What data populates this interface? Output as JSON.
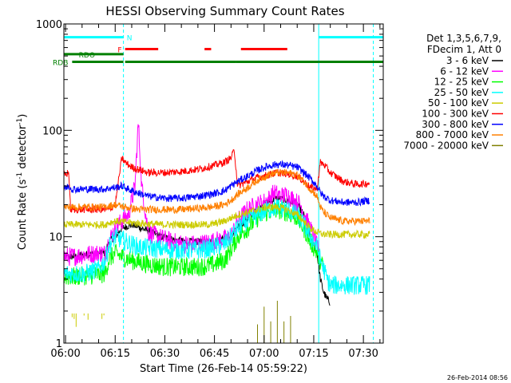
{
  "chart_data": {
    "type": "line",
    "title": "HESSI Observing Summary Count Rates",
    "xlabel": "Start Time (26-Feb-14 05:59:22)",
    "ylabel": "Count Rate (s⁻¹ detector⁻¹)",
    "ylabel_main": "Count Rate (s",
    "ylabel_sup1": "-1",
    "ylabel_mid": " detector",
    "ylabel_sup2": "-1",
    "ylabel_end": ")",
    "yscale": "log",
    "ylim": [
      1,
      1000
    ],
    "y_ticks": [
      1,
      10,
      100,
      1000
    ],
    "y_tick_labels": [
      "1",
      "10",
      "100",
      "1000"
    ],
    "xlim_minutes": [
      -0.5,
      96
    ],
    "x_ticks_minutes": [
      0,
      15,
      30,
      45,
      60,
      75,
      90
    ],
    "x_tick_labels": [
      "06:00",
      "06:15",
      "06:30",
      "06:45",
      "07:00",
      "07:15",
      "07:30"
    ],
    "grid": false,
    "legend_position": "right",
    "legend_header": [
      "Det 1,3,5,6,7,9,",
      "FDecim 1, Att 0"
    ],
    "timestamp": "26-Feb-2014 08:56",
    "series": [
      {
        "name": "3 - 6 keV",
        "color": "#000000",
        "points": [
          [
            -0.5,
            6.5
          ],
          [
            2,
            6.5
          ],
          [
            6,
            6.8
          ],
          [
            10,
            7
          ],
          [
            12,
            7
          ],
          [
            13,
            9
          ],
          [
            15,
            10
          ],
          [
            17,
            12
          ],
          [
            20,
            13
          ],
          [
            23,
            12
          ],
          [
            26,
            11
          ],
          [
            29,
            10
          ],
          [
            32,
            9.5
          ],
          [
            36,
            9
          ],
          [
            40,
            9
          ],
          [
            44,
            9
          ],
          [
            48,
            9.5
          ],
          [
            50,
            10
          ],
          [
            52,
            12
          ],
          [
            55,
            15
          ],
          [
            58,
            18
          ],
          [
            61,
            21
          ],
          [
            64,
            23
          ],
          [
            67,
            22
          ],
          [
            70,
            20
          ],
          [
            72,
            16
          ],
          [
            74,
            10
          ],
          [
            76,
            7
          ],
          [
            77,
            4
          ],
          [
            78,
            3
          ],
          [
            79,
            2.6
          ],
          [
            80,
            2.4
          ]
        ]
      },
      {
        "name": "6 - 12 keV",
        "color": "#ff00ff",
        "points": [
          [
            -0.5,
            6.5
          ],
          [
            2,
            6.5
          ],
          [
            6,
            6.8
          ],
          [
            10,
            7
          ],
          [
            12,
            7
          ],
          [
            13,
            9
          ],
          [
            15,
            12
          ],
          [
            17,
            14
          ],
          [
            19,
            16
          ],
          [
            21,
            30
          ],
          [
            22,
            120
          ],
          [
            23,
            30
          ],
          [
            25,
            11
          ],
          [
            28,
            10
          ],
          [
            32,
            9
          ],
          [
            36,
            8.5
          ],
          [
            40,
            8.5
          ],
          [
            44,
            9
          ],
          [
            48,
            9.5
          ],
          [
            50,
            10
          ],
          [
            52,
            14
          ],
          [
            55,
            18
          ],
          [
            58,
            20
          ],
          [
            61,
            22
          ],
          [
            63,
            26
          ],
          [
            65,
            24
          ],
          [
            67,
            25
          ],
          [
            69,
            22
          ],
          [
            71,
            20
          ],
          [
            73,
            14
          ],
          [
            75,
            10
          ],
          [
            76,
            8
          ],
          [
            77,
            6
          ]
        ]
      },
      {
        "name": "12 - 25 keV",
        "color": "#00ff00",
        "points": [
          [
            -0.5,
            4.2
          ],
          [
            2,
            4.2
          ],
          [
            6,
            4.3
          ],
          [
            10,
            4.4
          ],
          [
            12,
            4.5
          ],
          [
            13,
            6
          ],
          [
            15,
            7
          ],
          [
            17,
            6.5
          ],
          [
            20,
            6
          ],
          [
            25,
            5.5
          ],
          [
            30,
            5.2
          ],
          [
            35,
            5.2
          ],
          [
            40,
            5.2
          ],
          [
            44,
            5.4
          ],
          [
            48,
            6
          ],
          [
            50,
            7.5
          ],
          [
            52,
            10
          ],
          [
            55,
            12
          ],
          [
            58,
            15
          ],
          [
            61,
            17
          ],
          [
            64,
            18
          ],
          [
            67,
            17
          ],
          [
            70,
            15
          ],
          [
            72,
            12
          ],
          [
            74,
            9
          ],
          [
            76,
            7
          ],
          [
            78,
            5
          ]
        ]
      },
      {
        "name": "25 - 50 keV",
        "color": "#00ffff",
        "points": [
          [
            -0.5,
            4.5
          ],
          [
            2,
            4.5
          ],
          [
            6,
            4.5
          ],
          [
            10,
            5
          ],
          [
            12,
            6
          ],
          [
            13,
            8
          ],
          [
            15,
            10
          ],
          [
            18,
            9
          ],
          [
            22,
            8
          ],
          [
            26,
            7.8
          ],
          [
            30,
            7.6
          ],
          [
            35,
            7.5
          ],
          [
            40,
            7.5
          ],
          [
            44,
            7.8
          ],
          [
            48,
            8.5
          ],
          [
            50,
            10
          ],
          [
            52,
            12
          ],
          [
            55,
            14
          ],
          [
            58,
            16
          ],
          [
            61,
            18
          ],
          [
            64,
            19
          ],
          [
            67,
            18
          ],
          [
            70,
            16
          ],
          [
            72,
            13
          ],
          [
            74,
            10
          ],
          [
            76,
            8
          ],
          [
            77,
            6
          ],
          [
            78,
            5
          ],
          [
            79,
            4
          ],
          [
            80,
            3.5
          ],
          [
            84,
            3.5
          ],
          [
            88,
            3.5
          ],
          [
            92,
            3.5
          ]
        ]
      },
      {
        "name": "50 - 100 keV",
        "color": "#cccc00",
        "points": [
          [
            -0.5,
            13
          ],
          [
            2,
            13
          ],
          [
            6,
            13
          ],
          [
            10,
            13
          ],
          [
            12,
            13
          ],
          [
            13,
            13.5
          ],
          [
            15,
            14
          ],
          [
            20,
            13.5
          ],
          [
            25,
            13.2
          ],
          [
            30,
            13
          ],
          [
            35,
            13
          ],
          [
            40,
            13
          ],
          [
            44,
            13
          ],
          [
            48,
            14
          ],
          [
            50,
            15
          ],
          [
            52,
            16
          ],
          [
            55,
            17
          ],
          [
            58,
            18
          ],
          [
            61,
            19
          ],
          [
            64,
            19
          ],
          [
            67,
            18
          ],
          [
            70,
            16
          ],
          [
            72,
            14
          ],
          [
            74,
            12
          ],
          [
            76,
            11
          ],
          [
            78,
            10.5
          ],
          [
            80,
            10.5
          ],
          [
            84,
            10.5
          ],
          [
            88,
            10.5
          ],
          [
            92,
            10.5
          ]
        ]
      },
      {
        "name": "100 - 300 keV",
        "color": "#ff0000",
        "points": [
          [
            -0.5,
            38
          ],
          [
            1,
            40
          ],
          [
            1.5,
            18
          ],
          [
            6,
            18
          ],
          [
            10,
            18
          ],
          [
            12,
            18
          ],
          [
            13,
            18
          ],
          [
            15,
            20
          ],
          [
            17,
            55
          ],
          [
            18,
            50
          ],
          [
            20,
            45
          ],
          [
            25,
            40
          ],
          [
            30,
            40
          ],
          [
            35,
            41
          ],
          [
            40,
            43
          ],
          [
            44,
            46
          ],
          [
            48,
            50
          ],
          [
            50,
            55
          ],
          [
            51,
            65
          ],
          [
            52,
            30
          ],
          [
            55,
            33
          ],
          [
            58,
            36
          ],
          [
            61,
            38
          ],
          [
            64,
            40
          ],
          [
            67,
            39
          ],
          [
            70,
            37
          ],
          [
            72,
            33
          ],
          [
            74,
            29
          ],
          [
            76,
            28
          ],
          [
            77,
            50
          ],
          [
            78,
            48
          ],
          [
            80,
            40
          ],
          [
            84,
            33
          ],
          [
            88,
            31
          ],
          [
            92,
            32
          ]
        ]
      },
      {
        "name": "300 - 800 keV",
        "color": "#0000ff",
        "points": [
          [
            -0.5,
            28
          ],
          [
            1,
            30
          ],
          [
            2,
            28
          ],
          [
            6,
            28
          ],
          [
            10,
            28
          ],
          [
            12,
            28
          ],
          [
            13,
            28.5
          ],
          [
            15,
            29
          ],
          [
            17,
            30
          ],
          [
            20,
            27
          ],
          [
            25,
            24
          ],
          [
            30,
            23
          ],
          [
            35,
            23
          ],
          [
            40,
            24
          ],
          [
            44,
            25
          ],
          [
            48,
            27
          ],
          [
            50,
            30
          ],
          [
            52,
            33
          ],
          [
            55,
            37
          ],
          [
            58,
            42
          ],
          [
            61,
            46
          ],
          [
            64,
            48
          ],
          [
            67,
            47
          ],
          [
            70,
            45
          ],
          [
            72,
            40
          ],
          [
            74,
            35
          ],
          [
            76,
            30
          ],
          [
            77,
            26
          ],
          [
            78,
            24
          ],
          [
            80,
            22
          ],
          [
            84,
            21
          ],
          [
            88,
            21
          ],
          [
            92,
            22
          ]
        ]
      },
      {
        "name": "800 - 7000 keV",
        "color": "#ff8000",
        "points": [
          [
            -0.5,
            19
          ],
          [
            1,
            19
          ],
          [
            6,
            19
          ],
          [
            10,
            19
          ],
          [
            12,
            19
          ],
          [
            13,
            19.5
          ],
          [
            15,
            20
          ],
          [
            18,
            19
          ],
          [
            22,
            18
          ],
          [
            26,
            18
          ],
          [
            30,
            18
          ],
          [
            35,
            18
          ],
          [
            40,
            18.5
          ],
          [
            44,
            19
          ],
          [
            48,
            20
          ],
          [
            50,
            22
          ],
          [
            52,
            25
          ],
          [
            55,
            29
          ],
          [
            58,
            34
          ],
          [
            61,
            38
          ],
          [
            64,
            40
          ],
          [
            67,
            40
          ],
          [
            70,
            38
          ],
          [
            72,
            33
          ],
          [
            74,
            28
          ],
          [
            76,
            24
          ],
          [
            77,
            19
          ],
          [
            78,
            17
          ],
          [
            80,
            15
          ],
          [
            84,
            14
          ],
          [
            88,
            14
          ],
          [
            92,
            14
          ]
        ]
      },
      {
        "name": "7000 - 20000 keV",
        "color": "#808000",
        "points": [
          [
            58,
            1.5
          ],
          [
            60,
            2.2
          ],
          [
            62,
            1.6
          ],
          [
            64,
            2.5
          ],
          [
            66,
            1.6
          ],
          [
            68,
            1.8
          ]
        ]
      }
    ],
    "bands_minutes": [
      {
        "name": "N",
        "color": "#00ffff",
        "y": 750,
        "segments": [
          [
            -0.5,
            17.5
          ],
          [
            76.5,
            96
          ]
        ]
      },
      {
        "name": "F",
        "color": "#ff0000",
        "y": 580,
        "segments": [
          [
            18,
            28
          ],
          [
            42,
            44
          ],
          [
            53,
            67
          ]
        ]
      },
      {
        "name": "RDO",
        "color": "#008000",
        "y": 520,
        "segments": [
          [
            -0.5,
            17.5
          ]
        ]
      },
      {
        "name": "RDB",
        "color": "#008000",
        "y": 440,
        "segments": [
          [
            2,
            17.5
          ],
          [
            18,
            51.5
          ],
          [
            51.5,
            76.5
          ],
          [
            76.5,
            96
          ]
        ]
      }
    ],
    "band_colors": {
      "night": "#00ffff",
      "flare": "#ff0000",
      "rdo": "#008000",
      "yellow_noise": "#cccc00"
    },
    "vlines_minutes": [
      {
        "x": -0.5,
        "style": "solid"
      },
      {
        "x": 17.5,
        "style": "dashed"
      },
      {
        "x": 76.5,
        "style": "solid"
      },
      {
        "x": 93,
        "style": "dashed"
      }
    ]
  }
}
